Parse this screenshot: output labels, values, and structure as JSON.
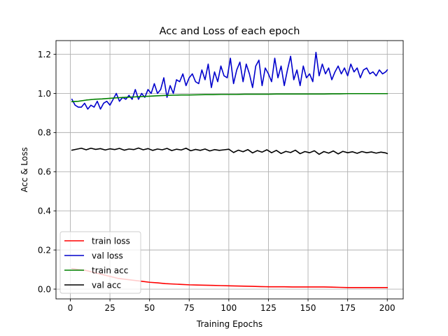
{
  "chart_data": {
    "type": "line",
    "title": "Acc and Loss of each epoch",
    "xlabel": "Training Epochs",
    "ylabel": "Acc & Loss",
    "xlim": [
      -9.05,
      210.05
    ],
    "ylim": [
      -0.05,
      1.27
    ],
    "xticks": [
      0,
      25,
      50,
      75,
      100,
      125,
      150,
      175,
      200
    ],
    "yticks": [
      0.0,
      0.2,
      0.4,
      0.6,
      0.8,
      1.0,
      1.2
    ],
    "grid": true,
    "legend_position": "lower left",
    "series": [
      {
        "name": "train loss",
        "color": "#ff0000",
        "x": [
          1,
          5,
          10,
          15,
          20,
          25,
          30,
          35,
          40,
          45,
          50,
          55,
          60,
          65,
          70,
          75,
          80,
          85,
          90,
          95,
          100,
          105,
          110,
          115,
          120,
          125,
          130,
          135,
          140,
          145,
          150,
          155,
          160,
          165,
          170,
          175,
          180,
          185,
          190,
          195,
          200
        ],
        "y": [
          0.105,
          0.1,
          0.095,
          0.085,
          0.075,
          0.065,
          0.055,
          0.05,
          0.045,
          0.04,
          0.035,
          0.032,
          0.028,
          0.026,
          0.024,
          0.022,
          0.021,
          0.02,
          0.019,
          0.018,
          0.017,
          0.016,
          0.015,
          0.014,
          0.013,
          0.012,
          0.012,
          0.012,
          0.011,
          0.011,
          0.011,
          0.011,
          0.011,
          0.01,
          0.009,
          0.008,
          0.008,
          0.008,
          0.008,
          0.008,
          0.008
        ]
      },
      {
        "name": "val loss",
        "color": "#0000cc",
        "x": [
          1,
          3,
          5,
          7,
          9,
          11,
          13,
          15,
          17,
          19,
          21,
          23,
          25,
          27,
          29,
          31,
          33,
          35,
          37,
          39,
          41,
          43,
          45,
          47,
          49,
          51,
          53,
          55,
          57,
          59,
          61,
          63,
          65,
          67,
          69,
          71,
          73,
          75,
          77,
          79,
          81,
          83,
          85,
          87,
          89,
          91,
          93,
          95,
          97,
          99,
          101,
          103,
          105,
          107,
          109,
          111,
          113,
          115,
          117,
          119,
          121,
          123,
          125,
          127,
          129,
          131,
          133,
          135,
          137,
          139,
          141,
          143,
          145,
          147,
          149,
          151,
          153,
          155,
          157,
          159,
          161,
          163,
          165,
          167,
          169,
          171,
          173,
          175,
          177,
          179,
          181,
          183,
          185,
          187,
          189,
          191,
          193,
          195,
          197,
          199,
          200
        ],
        "y": [
          0.97,
          0.94,
          0.93,
          0.93,
          0.95,
          0.92,
          0.94,
          0.93,
          0.96,
          0.92,
          0.95,
          0.96,
          0.94,
          0.97,
          1.0,
          0.96,
          0.98,
          0.97,
          0.99,
          0.97,
          1.02,
          0.97,
          1.0,
          0.98,
          1.02,
          1.0,
          1.05,
          1.0,
          1.02,
          1.08,
          0.98,
          1.04,
          1.0,
          1.07,
          1.06,
          1.1,
          1.04,
          1.08,
          1.1,
          1.06,
          1.05,
          1.12,
          1.07,
          1.15,
          1.03,
          1.11,
          1.06,
          1.14,
          1.09,
          1.08,
          1.18,
          1.05,
          1.12,
          1.16,
          1.06,
          1.15,
          1.1,
          1.03,
          1.14,
          1.17,
          1.04,
          1.13,
          1.1,
          1.06,
          1.18,
          1.08,
          1.14,
          1.04,
          1.12,
          1.19,
          1.07,
          1.12,
          1.04,
          1.14,
          1.08,
          1.1,
          1.06,
          1.21,
          1.09,
          1.15,
          1.1,
          1.13,
          1.07,
          1.11,
          1.14,
          1.1,
          1.13,
          1.09,
          1.15,
          1.11,
          1.13,
          1.08,
          1.12,
          1.13,
          1.1,
          1.11,
          1.09,
          1.12,
          1.1,
          1.11,
          1.12
        ]
      },
      {
        "name": "train acc",
        "color": "#008000",
        "x": [
          1,
          5,
          10,
          15,
          20,
          25,
          30,
          35,
          40,
          45,
          50,
          55,
          60,
          65,
          70,
          75,
          80,
          85,
          90,
          95,
          100,
          105,
          110,
          115,
          120,
          125,
          130,
          135,
          140,
          145,
          150,
          155,
          160,
          165,
          170,
          175,
          180,
          185,
          190,
          195,
          200
        ],
        "y": [
          0.958,
          0.96,
          0.966,
          0.97,
          0.972,
          0.975,
          0.978,
          0.98,
          0.982,
          0.984,
          0.986,
          0.988,
          0.99,
          0.991,
          0.992,
          0.992,
          0.993,
          0.994,
          0.994,
          0.995,
          0.995,
          0.995,
          0.996,
          0.996,
          0.996,
          0.996,
          0.997,
          0.997,
          0.997,
          0.997,
          0.997,
          0.997,
          0.997,
          0.998,
          0.998,
          0.999,
          0.999,
          0.999,
          0.999,
          0.999,
          0.999
        ]
      },
      {
        "name": "val acc",
        "color": "#000000",
        "x": [
          1,
          4,
          7,
          10,
          13,
          16,
          19,
          22,
          25,
          28,
          31,
          34,
          37,
          40,
          43,
          46,
          49,
          52,
          55,
          58,
          61,
          64,
          67,
          70,
          73,
          76,
          79,
          82,
          85,
          88,
          91,
          94,
          97,
          100,
          103,
          106,
          109,
          112,
          115,
          118,
          121,
          124,
          127,
          130,
          133,
          136,
          139,
          142,
          145,
          148,
          151,
          154,
          157,
          160,
          163,
          166,
          169,
          172,
          175,
          178,
          181,
          184,
          187,
          190,
          193,
          196,
          199,
          200
        ],
        "y": [
          0.71,
          0.715,
          0.72,
          0.712,
          0.72,
          0.714,
          0.718,
          0.711,
          0.717,
          0.713,
          0.719,
          0.71,
          0.716,
          0.713,
          0.721,
          0.712,
          0.718,
          0.709,
          0.716,
          0.712,
          0.719,
          0.708,
          0.715,
          0.711,
          0.72,
          0.707,
          0.714,
          0.709,
          0.716,
          0.706,
          0.713,
          0.709,
          0.712,
          0.715,
          0.698,
          0.71,
          0.702,
          0.713,
          0.696,
          0.708,
          0.7,
          0.712,
          0.697,
          0.709,
          0.693,
          0.704,
          0.698,
          0.71,
          0.692,
          0.703,
          0.697,
          0.707,
          0.689,
          0.703,
          0.695,
          0.706,
          0.691,
          0.704,
          0.697,
          0.702,
          0.694,
          0.703,
          0.697,
          0.701,
          0.695,
          0.7,
          0.696,
          0.693
        ]
      }
    ]
  }
}
